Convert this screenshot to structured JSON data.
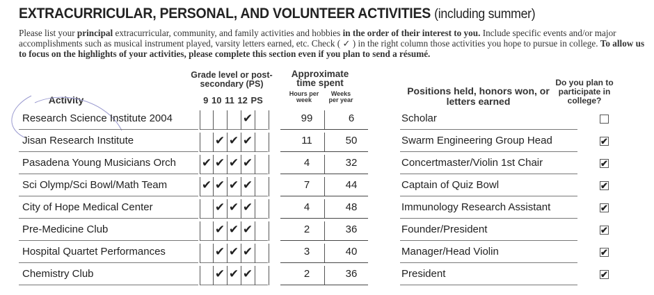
{
  "title": {
    "main": "EXTRACURRICULAR, PERSONAL, AND VOLUNTEER ACTIVITIES",
    "sub": "(including summer)"
  },
  "intro": {
    "p1": "Please list your ",
    "b1": "principal",
    "p2": " extracurricular, community, and family activities and hobbies ",
    "b2": "in the order of their interest to you.",
    "p3": " Include specific events and/or major accomplishments such as musical instrument played, varsity letters earned, etc. Check ( ✓ ) in the right column those activities you hope to pursue in college. ",
    "b3": "To allow us to focus on the highlights of your activities, please complete this section even if you plan to send a résumé."
  },
  "headers": {
    "activity": "Activity",
    "grade": "Grade level or post-secondary (PS)",
    "grade_cols": "9 10 11 12 PS",
    "time": "Approximate time spent",
    "hours": "Hours per week",
    "weeks": "Weeks per year",
    "positions": "Positions held, honors won, or letters earned",
    "college": "Do you plan to participate in college?"
  },
  "rows": [
    {
      "activity": "Research Science Institute 2004",
      "grades": [
        false,
        false,
        false,
        true,
        false
      ],
      "hours": "99",
      "weeks": "6",
      "position": "Scholar",
      "college": false
    },
    {
      "activity": "Jisan Research Institute",
      "grades": [
        false,
        true,
        true,
        true,
        false
      ],
      "hours": "11",
      "weeks": "50",
      "position": "Swarm Engineering Group Head",
      "college": true
    },
    {
      "activity": "Pasadena Young Musicians Orch",
      "grades": [
        true,
        true,
        true,
        true,
        false
      ],
      "hours": "4",
      "weeks": "32",
      "position": "Concertmaster/Violin 1st Chair",
      "college": true
    },
    {
      "activity": "Sci Olymp/Sci Bowl/Math Team",
      "grades": [
        true,
        true,
        true,
        true,
        false
      ],
      "hours": "7",
      "weeks": "44",
      "position": "Captain of Quiz Bowl",
      "college": true
    },
    {
      "activity": "City of Hope Medical Center",
      "grades": [
        false,
        true,
        true,
        true,
        false
      ],
      "hours": "4",
      "weeks": "48",
      "position": "Immunology Research Assistant",
      "college": true
    },
    {
      "activity": "Pre-Medicine Club",
      "grades": [
        false,
        true,
        true,
        true,
        false
      ],
      "hours": "2",
      "weeks": "36",
      "position": "Founder/President",
      "college": true
    },
    {
      "activity": "Hospital Quartet Performances",
      "grades": [
        false,
        true,
        true,
        true,
        false
      ],
      "hours": "3",
      "weeks": "40",
      "position": "Manager/Head Violin",
      "college": true
    },
    {
      "activity": "Chemistry Club",
      "grades": [
        false,
        true,
        true,
        true,
        false
      ],
      "hours": "2",
      "weeks": "36",
      "position": "President",
      "college": true
    }
  ],
  "check_mark": "✔"
}
